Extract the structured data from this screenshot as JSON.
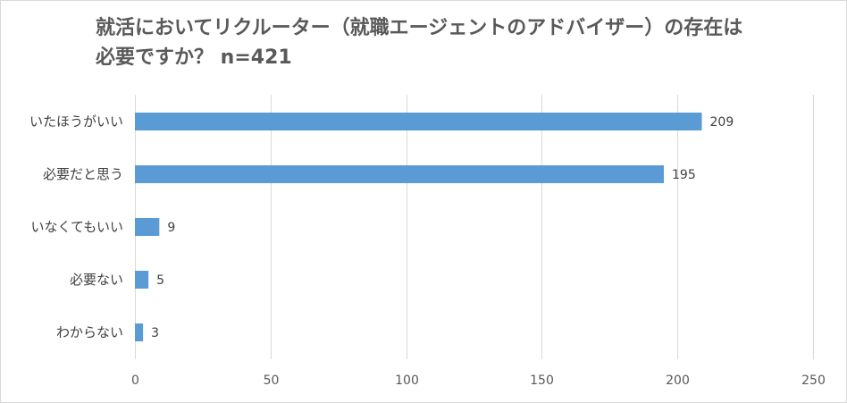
{
  "chart_data": {
    "type": "bar",
    "orientation": "horizontal",
    "title": "就活においてリクルーター（就職エージェントのアドバイザー）の存在は\n必要ですか？ n=421",
    "categories": [
      "いたほうがいい",
      "必要だと思う",
      "いなくてもいい",
      "必要ない",
      "わからない"
    ],
    "values": [
      209,
      195,
      9,
      5,
      3
    ],
    "data_labels": [
      "209",
      "195",
      "9",
      "5",
      "3"
    ],
    "xlim": [
      0,
      250
    ],
    "x_ticks": [
      0,
      50,
      100,
      150,
      200,
      250
    ],
    "x_tick_labels": [
      "0",
      "50",
      "100",
      "150",
      "200",
      "250"
    ],
    "gridlines": true,
    "legend": "none",
    "bar_color": "#5b9bd5",
    "grid_color": "#d9d9d9"
  }
}
